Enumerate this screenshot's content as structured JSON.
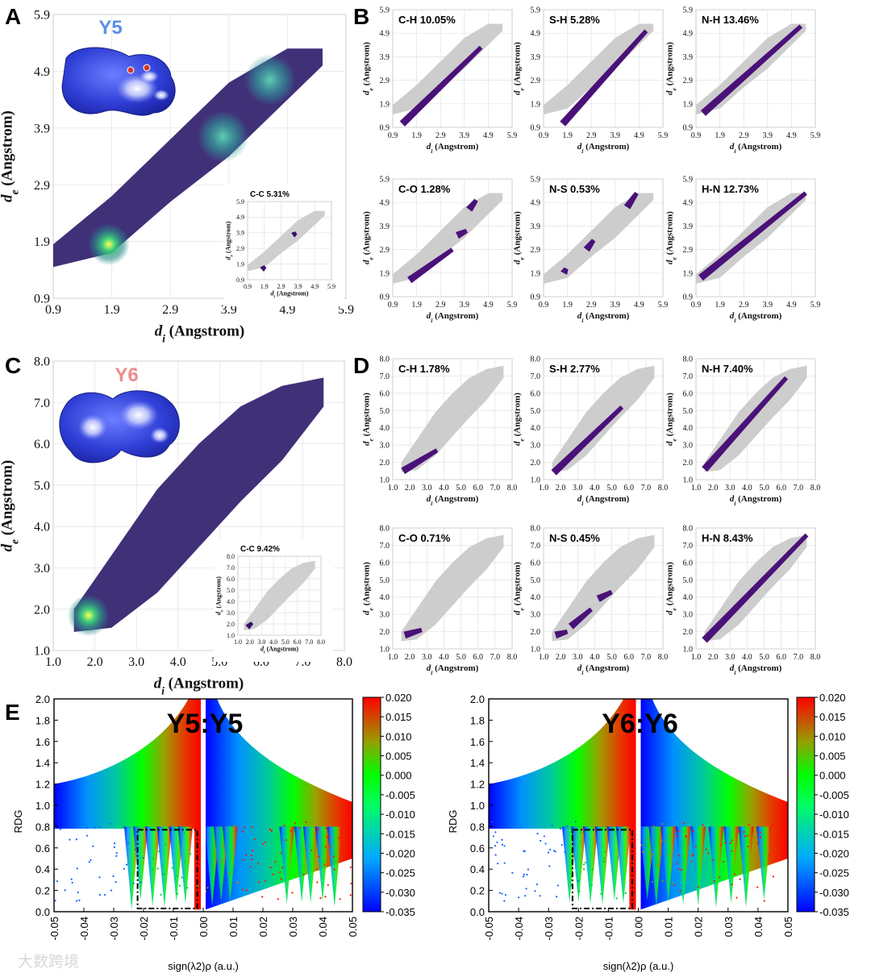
{
  "figure": {
    "panel_letters": [
      "A",
      "B",
      "C",
      "D",
      "E"
    ],
    "watermark": "大数跨境"
  },
  "chart_data": [
    {
      "id": "A",
      "type": "scatter",
      "subtype": "2d-fingerprint-density",
      "title": "Y5",
      "title_color": "#5b8fe6",
      "xlabel": "d_i (Angstrom)",
      "ylabel": "d_e (Angstrom)",
      "xlim": [
        0.9,
        5.9
      ],
      "ylim": [
        0.9,
        5.9
      ],
      "ticks": [
        "0.9",
        "1.9",
        "2.9",
        "3.9",
        "4.9",
        "5.9"
      ],
      "band": [
        [
          0.9,
          1.45,
          1.85
        ],
        [
          1.9,
          1.7,
          2.7
        ],
        [
          2.9,
          2.6,
          3.7
        ],
        [
          3.9,
          3.4,
          4.7
        ],
        [
          4.9,
          4.4,
          5.3
        ],
        [
          5.5,
          5.0,
          5.3
        ]
      ],
      "hotspots": [
        [
          1.85,
          1.85
        ],
        [
          3.8,
          3.75
        ],
        [
          4.6,
          4.75
        ]
      ],
      "inset": {
        "label": "C-C 5.31%",
        "segments": [
          [
            1.75,
            1.95,
            1.55,
            1.75
          ],
          [
            3.6,
            3.8,
            3.75,
            3.9
          ]
        ]
      }
    },
    {
      "id": "B",
      "type": "scatter",
      "subtype": "2d-fingerprint-decomposition",
      "xlabel": "d_i (Angstrom)",
      "ylabel": "d_e (Angstrom)",
      "xlim": [
        0.9,
        5.9
      ],
      "ylim": [
        0.9,
        5.9
      ],
      "ticks": [
        "0.9",
        "1.9",
        "2.9",
        "3.9",
        "4.9",
        "5.9"
      ],
      "panels": [
        {
          "label": "C-H 10.05%",
          "segments": [
            [
              1.3,
              4.6,
              1.05,
              4.3
            ]
          ]
        },
        {
          "label": "S-H 5.28%",
          "segments": [
            [
              1.7,
              5.2,
              1.05,
              5.0
            ]
          ]
        },
        {
          "label": "N-H 13.46%",
          "segments": [
            [
              1.2,
              5.3,
              1.5,
              5.2
            ]
          ]
        },
        {
          "label": "C-O 1.28%",
          "segments": [
            [
              1.6,
              3.4,
              1.6,
              2.9
            ],
            [
              3.6,
              4.0,
              3.5,
              3.7
            ],
            [
              4.1,
              4.4,
              4.6,
              5.0
            ]
          ]
        },
        {
          "label": "N-S 0.53%",
          "segments": [
            [
              1.75,
              1.85,
              1.9,
              2.1
            ],
            [
              2.7,
              3.0,
              2.9,
              3.3
            ],
            [
              4.4,
              4.8,
              4.7,
              5.3
            ]
          ]
        },
        {
          "label": "H-N 12.73%",
          "segments": [
            [
              1.1,
              5.5,
              1.7,
              5.3
            ]
          ]
        }
      ]
    },
    {
      "id": "C",
      "type": "scatter",
      "subtype": "2d-fingerprint-density",
      "title": "Y6",
      "title_color": "#f08a8a",
      "xlabel": "d_i (Angstrom)",
      "ylabel": "d_e (Angstrom)",
      "xlim": [
        1.0,
        8.0
      ],
      "ylim": [
        1.0,
        8.0
      ],
      "ticks": [
        "1.0",
        "2.0",
        "3.0",
        "4.0",
        "5.0",
        "6.0",
        "7.0",
        "8.0"
      ],
      "band": [
        [
          1.5,
          1.45,
          2.0
        ],
        [
          2.4,
          1.55,
          3.3
        ],
        [
          3.5,
          2.4,
          4.9
        ],
        [
          4.5,
          3.5,
          6.0
        ],
        [
          5.5,
          4.6,
          6.9
        ],
        [
          6.5,
          5.6,
          7.4
        ],
        [
          7.5,
          6.9,
          7.6
        ]
      ],
      "hotspots": [
        [
          1.85,
          1.85
        ]
      ],
      "inset": {
        "label": "C-C 9.42%",
        "segments": [
          [
            1.8,
            2.2,
            1.7,
            2.1
          ]
        ]
      }
    },
    {
      "id": "D",
      "type": "scatter",
      "subtype": "2d-fingerprint-decomposition",
      "xlabel": "d_i (Angstrom)",
      "ylabel": "d_e (Angstrom)",
      "xlim": [
        1.0,
        8.0
      ],
      "ylim": [
        1.0,
        8.0
      ],
      "ticks": [
        "1.0",
        "2.0",
        "3.0",
        "4.0",
        "5.0",
        "6.0",
        "7.0",
        "8.0"
      ],
      "panels": [
        {
          "label": "C-H 1.78%",
          "segments": [
            [
              1.6,
              3.6,
              1.5,
              2.7
            ]
          ]
        },
        {
          "label": "S-H 2.77%",
          "segments": [
            [
              1.6,
              5.6,
              1.4,
              5.2
            ]
          ]
        },
        {
          "label": "N-H 7.40%",
          "segments": [
            [
              1.5,
              6.3,
              1.6,
              6.9
            ]
          ]
        },
        {
          "label": "C-O 0.71%",
          "segments": [
            [
              1.7,
              2.7,
              1.8,
              2.1
            ]
          ]
        },
        {
          "label": "N-S 0.45%",
          "segments": [
            [
              1.7,
              2.4,
              1.8,
              2.0
            ],
            [
              2.6,
              3.8,
              2.3,
              3.3
            ],
            [
              4.2,
              5.0,
              3.9,
              4.3
            ]
          ]
        },
        {
          "label": "H-N 8.43%",
          "segments": [
            [
              1.5,
              7.5,
              1.5,
              7.6
            ]
          ]
        }
      ]
    },
    {
      "id": "E",
      "type": "scatter",
      "subtype": "rdg-vs-sign-lambda2-rho",
      "xlabel": "sign(λ2)ρ (a.u.)",
      "ylabel": "RDG",
      "xlim": [
        -0.05,
        0.05
      ],
      "ylim": [
        0.0,
        2.0
      ],
      "xticks": [
        "-0.05",
        "-0.04",
        "-0.03",
        "-0.02",
        "-0.01",
        "0.00",
        "0.01",
        "0.02",
        "0.03",
        "0.04",
        "0.05"
      ],
      "yticks": [
        "0.0",
        "0.2",
        "0.4",
        "0.6",
        "0.8",
        "1.0",
        "1.2",
        "1.4",
        "1.6",
        "1.8",
        "2.0"
      ],
      "colorbar": {
        "min": -0.035,
        "max": 0.02,
        "ticks": [
          "0.020",
          "0.015",
          "0.010",
          "0.005",
          "0.000",
          "-0.005",
          "-0.010",
          "-0.015",
          "-0.020",
          "-0.025",
          "-0.030",
          "-0.035"
        ],
        "colors": [
          "#0000ff",
          "#00ff00",
          "#ff0000"
        ]
      },
      "highlight_box": {
        "x": [
          -0.022,
          -0.002
        ],
        "y": [
          0.03,
          0.77
        ]
      },
      "panels": [
        {
          "title": "Y5:Y5",
          "spikes": [
            -0.024,
            -0.021,
            -0.017,
            -0.013,
            -0.009,
            -0.006,
            0.003,
            0.006,
            0.009,
            0.028,
            0.033,
            0.036,
            0.04,
            0.044
          ]
        },
        {
          "title": "Y6:Y6",
          "spikes": [
            -0.023,
            -0.02,
            -0.016,
            -0.012,
            -0.008,
            -0.005,
            0.003,
            0.006,
            0.01,
            0.015,
            0.02,
            0.026,
            0.031,
            0.036,
            0.042
          ]
        }
      ]
    }
  ]
}
